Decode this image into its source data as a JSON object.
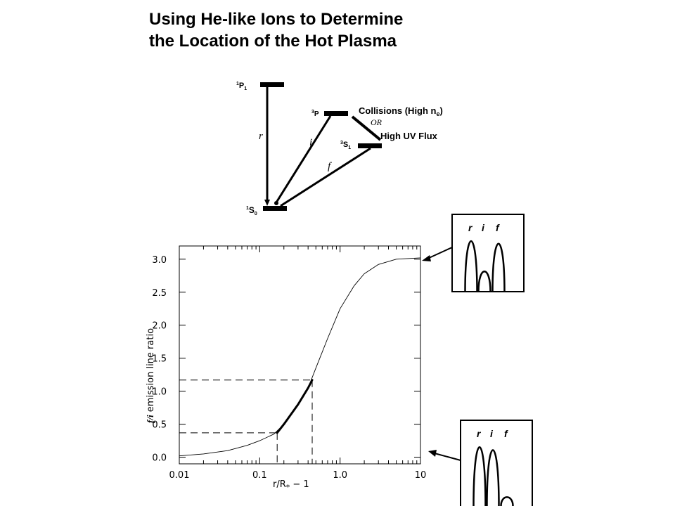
{
  "title_line1": "Using He-like Ions to Determine",
  "title_line2": "the Location of the Hot Plasma",
  "diagram": {
    "levels": {
      "p1": {
        "label": "1P1"
      },
      "p3": {
        "label": "3P"
      },
      "s3": {
        "label": "3S1"
      },
      "s0": {
        "label": "1S0"
      }
    },
    "line_r": "r",
    "line_i": "i",
    "line_f": "f",
    "collisions_text": "Collisions (High n",
    "collisions_sub": "e",
    "collisions_close": ")",
    "or_text": "OR",
    "uv_text": "High UV Flux"
  },
  "insets": {
    "top": {
      "labels": [
        "r",
        "i",
        "f"
      ],
      "peaks": [
        1.0,
        0.4,
        0.95
      ]
    },
    "bottom": {
      "labels": [
        "r",
        "i",
        "f"
      ],
      "peaks": [
        1.0,
        0.95,
        0.15
      ]
    }
  },
  "chart_data": {
    "type": "line",
    "ylabel_prefix": "f/i",
    "ylabel_rest": " emission line ratio",
    "xlabel_main": "r/R",
    "xlabel_sub": "*",
    "xlabel_tail": " − 1",
    "xscale": "log",
    "xlim": [
      0.01,
      10
    ],
    "ylim": [
      -0.1,
      3.2
    ],
    "xticks": [
      0.01,
      0.1,
      1.0,
      10
    ],
    "xtick_labels": [
      "0.01",
      "0.1",
      "1.0",
      "10"
    ],
    "yticks": [
      0.0,
      0.5,
      1.0,
      1.5,
      2.0,
      2.5,
      3.0
    ],
    "ytick_labels": [
      "0.0",
      "0.5",
      "1.0",
      "1.5",
      "2.0",
      "2.5",
      "3.0"
    ],
    "series": [
      {
        "x": [
          0.01,
          0.02,
          0.04,
          0.07,
          0.1,
          0.15,
          0.2,
          0.3,
          0.4,
          0.5,
          0.7,
          1.0,
          1.5,
          2.0,
          3.0,
          5.0,
          10.0
        ],
        "y": [
          0.02,
          0.05,
          0.1,
          0.18,
          0.25,
          0.35,
          0.5,
          0.8,
          1.05,
          1.35,
          1.8,
          2.25,
          2.6,
          2.78,
          2.92,
          3.0,
          3.02
        ],
        "style": "thin"
      },
      {
        "x": [
          0.165,
          0.2,
          0.3,
          0.4,
          0.45
        ],
        "y": [
          0.37,
          0.5,
          0.8,
          1.05,
          1.17
        ],
        "style": "thick"
      }
    ],
    "dashed_markers": [
      {
        "x": 0.165,
        "y": 0.37
      },
      {
        "x": 0.45,
        "y": 1.17
      }
    ],
    "grid": false
  }
}
